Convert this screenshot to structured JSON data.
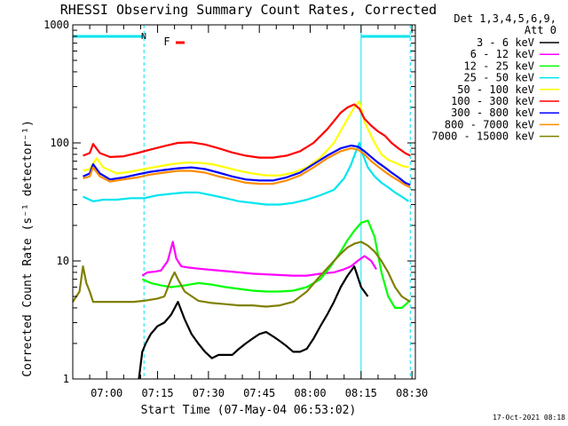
{
  "chart_data": {
    "type": "line",
    "title": "RHESSI Observing Summary Count Rates, Corrected",
    "xlabel": "Start Time (07-May-04 06:53:02)",
    "ylabel": "Corrected Count Rate (s⁻¹ detector⁻¹)",
    "yscale": "log",
    "ylim": [
      1,
      1000
    ],
    "xlim_minutes": [
      -3.0,
      98.0
    ],
    "x_tick_labels": [
      "07:00",
      "07:15",
      "07:30",
      "07:45",
      "08:00",
      "08:15",
      "08:30"
    ],
    "x_tick_minutes": [
      7,
      22,
      37,
      52,
      67,
      82,
      97
    ],
    "y_tick_labels": [
      "1",
      "10",
      "100",
      "1000"
    ],
    "y_tick_values": [
      1,
      10,
      100,
      1000
    ],
    "legend_header": [
      "Det 1,3,4,5,6,9,",
      "Att 0"
    ],
    "legend_position": "right",
    "timestamp": "17-Oct-2021 08:18",
    "flags": [
      {
        "label": "N",
        "color": "#00e5ee"
      },
      {
        "label": "F",
        "color": "#ff0000"
      }
    ],
    "night_intervals_minutes": [
      [
        -3.0,
        18.0
      ],
      [
        82.0,
        96.5
      ]
    ],
    "series": [
      {
        "name": "3 - 6 keV",
        "color": "#000000",
        "x": [
          16.5,
          17.5,
          18.5,
          20,
          22,
          24,
          26,
          28,
          30,
          32,
          34,
          36,
          38,
          40,
          42,
          44,
          46,
          48,
          50,
          52,
          54,
          56,
          58,
          60,
          62,
          64,
          66,
          68,
          70,
          72,
          74,
          76,
          78,
          80,
          82,
          84
        ],
        "y": [
          1.0,
          1.7,
          2.0,
          2.4,
          2.8,
          3.0,
          3.5,
          4.5,
          3.2,
          2.4,
          2.0,
          1.7,
          1.5,
          1.6,
          1.6,
          1.6,
          1.8,
          2.0,
          2.2,
          2.4,
          2.5,
          2.3,
          2.1,
          1.9,
          1.7,
          1.7,
          1.8,
          2.2,
          2.8,
          3.5,
          4.5,
          6.0,
          7.5,
          9.0,
          6.0,
          5.0
        ]
      },
      {
        "name": "6 - 12 keV",
        "color": "#ff00ff",
        "x": [
          17.5,
          19,
          21,
          23,
          25,
          26.5,
          27.5,
          29,
          31,
          34,
          38,
          42,
          46,
          50,
          54,
          58,
          62,
          66,
          70,
          74,
          77,
          79,
          81,
          83,
          85,
          86.5
        ],
        "y": [
          7.5,
          8.0,
          8.1,
          8.3,
          10.0,
          14.5,
          10.5,
          9.0,
          8.8,
          8.6,
          8.4,
          8.2,
          8.0,
          7.8,
          7.7,
          7.6,
          7.5,
          7.5,
          7.8,
          8.0,
          8.5,
          9.0,
          10.0,
          11.0,
          10.0,
          8.5
        ]
      },
      {
        "name": "12 - 25 keV",
        "color": "#00ff00",
        "x": [
          17.5,
          20,
          23,
          26,
          30,
          34,
          38,
          42,
          46,
          50,
          54,
          58,
          62,
          66,
          70,
          73,
          76,
          78,
          80,
          82,
          84,
          86,
          88,
          90,
          92,
          94,
          96
        ],
        "y": [
          7.0,
          6.5,
          6.2,
          6.0,
          6.2,
          6.5,
          6.3,
          6.0,
          5.8,
          5.6,
          5.5,
          5.5,
          5.6,
          6.0,
          7.0,
          9.0,
          12.0,
          15.0,
          18.0,
          21.0,
          22.0,
          16.0,
          8.0,
          5.0,
          4.0,
          4.0,
          4.5
        ]
      },
      {
        "name": "25 - 50 keV",
        "color": "#00e5ee",
        "x": [
          0,
          3,
          6,
          10,
          14,
          18,
          22,
          26,
          30,
          34,
          38,
          42,
          46,
          50,
          54,
          58,
          62,
          66,
          70,
          74,
          77,
          79,
          80.5,
          81.5,
          82.5,
          84,
          86,
          88,
          90,
          92,
          94,
          96
        ],
        "y": [
          35,
          32,
          33,
          33,
          34,
          34,
          36,
          37,
          38,
          38,
          36,
          34,
          32,
          31,
          30,
          30,
          31,
          33,
          36,
          40,
          50,
          65,
          85,
          100,
          80,
          62,
          52,
          46,
          42,
          38,
          35,
          32
        ]
      },
      {
        "name": "50 - 100 keV",
        "color": "#ffff00",
        "x": [
          0,
          2,
          4,
          6,
          10,
          14,
          18,
          22,
          26,
          30,
          34,
          38,
          42,
          46,
          50,
          54,
          58,
          62,
          66,
          70,
          74,
          78,
          80,
          81.5,
          83,
          86,
          88,
          90,
          92,
          94,
          96
        ],
        "y": [
          58,
          60,
          74,
          62,
          55,
          57,
          60,
          63,
          66,
          68,
          68,
          66,
          62,
          58,
          55,
          53,
          53,
          56,
          62,
          75,
          100,
          160,
          200,
          225,
          150,
          100,
          80,
          72,
          68,
          64,
          62
        ]
      },
      {
        "name": "100 - 300 keV",
        "color": "#ff0000",
        "x": [
          0,
          2,
          3,
          5,
          8,
          12,
          16,
          20,
          24,
          28,
          32,
          36,
          40,
          44,
          48,
          52,
          56,
          60,
          64,
          68,
          72,
          76,
          78,
          80,
          81.5,
          83,
          85,
          87,
          89,
          91,
          93,
          95,
          96.5
        ],
        "y": [
          78,
          82,
          98,
          82,
          76,
          77,
          82,
          88,
          94,
          100,
          101,
          97,
          90,
          83,
          78,
          75,
          75,
          78,
          85,
          100,
          130,
          180,
          200,
          212,
          195,
          160,
          140,
          125,
          115,
          100,
          90,
          82,
          78
        ]
      },
      {
        "name": "300 - 800 keV",
        "color": "#0000ff",
        "x": [
          0,
          2,
          3,
          5,
          8,
          12,
          16,
          20,
          24,
          28,
          32,
          36,
          40,
          44,
          48,
          52,
          56,
          60,
          64,
          68,
          72,
          76,
          79,
          81,
          83,
          85,
          87,
          89,
          91,
          93,
          95,
          96.5
        ],
        "y": [
          52,
          55,
          66,
          55,
          49,
          51,
          54,
          57,
          59,
          61,
          62,
          60,
          56,
          52,
          49,
          48,
          48,
          51,
          56,
          66,
          78,
          90,
          95,
          93,
          85,
          76,
          68,
          62,
          56,
          51,
          46,
          44
        ]
      },
      {
        "name": "800 - 7000 keV",
        "color": "#ff8c00",
        "x": [
          0,
          2,
          3,
          5,
          8,
          12,
          16,
          20,
          24,
          28,
          32,
          36,
          40,
          44,
          48,
          52,
          56,
          60,
          64,
          68,
          72,
          76,
          79,
          81,
          83,
          85,
          87,
          89,
          91,
          93,
          95,
          96.5
        ],
        "y": [
          50,
          52,
          62,
          52,
          47,
          49,
          51,
          54,
          56,
          58,
          58,
          56,
          52,
          49,
          46,
          45,
          45,
          48,
          53,
          62,
          74,
          85,
          90,
          88,
          80,
          70,
          63,
          57,
          52,
          48,
          44,
          42
        ]
      },
      {
        "name": "7000 - 15000 keV",
        "color": "#808000",
        "x": [
          -3,
          -1,
          0,
          1,
          2,
          3,
          5,
          8,
          12,
          15,
          18,
          22,
          24,
          26,
          27,
          28,
          30,
          34,
          38,
          42,
          46,
          50,
          54,
          58,
          62,
          66,
          70,
          74,
          76,
          78,
          80,
          82,
          84,
          86,
          88,
          90,
          92,
          94,
          96.5
        ],
        "y": [
          4.5,
          5.5,
          9.0,
          6.5,
          5.5,
          4.5,
          4.5,
          4.5,
          4.5,
          4.5,
          4.6,
          4.8,
          5.0,
          7.0,
          8.0,
          7.0,
          5.5,
          4.6,
          4.4,
          4.3,
          4.2,
          4.2,
          4.1,
          4.2,
          4.5,
          5.5,
          7.5,
          10.0,
          11.5,
          13.0,
          14.0,
          14.5,
          13.5,
          12.0,
          10.0,
          8.0,
          6.0,
          5.0,
          4.5
        ]
      }
    ]
  }
}
